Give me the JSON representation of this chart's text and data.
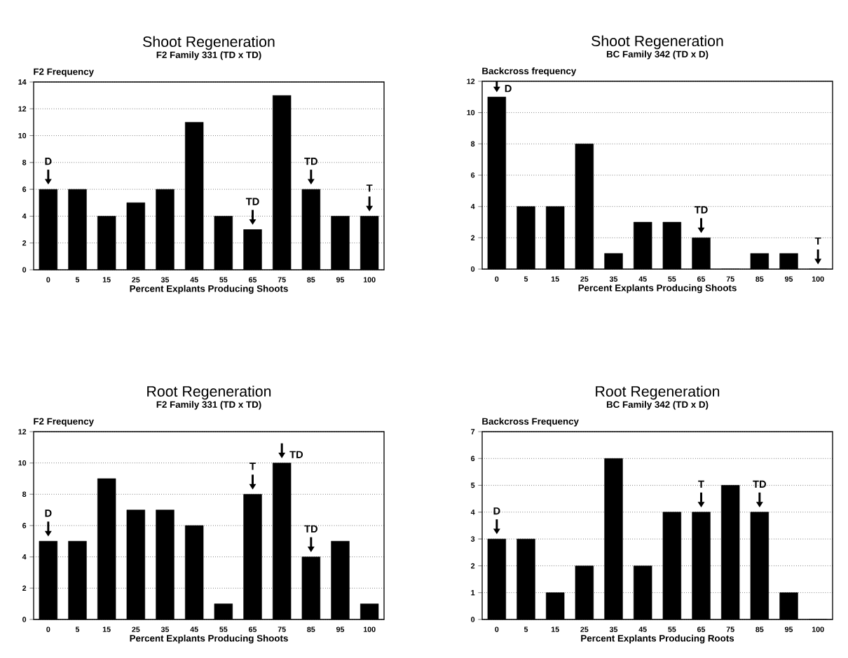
{
  "chart_data": [
    {
      "type": "bar",
      "title": "Shoot Regeneration",
      "subtitle": "F2 Family 331 (TD x TD)",
      "ylabel": "F2 Frequency",
      "xlabel": "Percent Explants Producing Shoots",
      "categories": [
        "0",
        "5",
        "15",
        "25",
        "35",
        "45",
        "55",
        "65",
        "75",
        "85",
        "95",
        "100"
      ],
      "values": [
        6,
        6,
        4,
        5,
        6,
        11,
        4,
        3,
        13,
        6,
        4,
        4
      ],
      "color": "#000000",
      "ylim": [
        0,
        14
      ],
      "yticks": [
        0,
        2,
        4,
        6,
        8,
        10,
        12,
        14
      ],
      "grid": "y",
      "annotations": [
        {
          "text": "D",
          "x": "0",
          "y": 6
        },
        {
          "text": "TD",
          "x": "65",
          "y": 3
        },
        {
          "text": "TD",
          "x": "85",
          "y": 6
        },
        {
          "text": "T",
          "x": "100",
          "y": 4
        }
      ]
    },
    {
      "type": "bar",
      "title": "Shoot Regeneration",
      "subtitle": "BC Family 342 (TD x D)",
      "ylabel": "Backcross frequency",
      "xlabel": "Percent Explants Producing Shoots",
      "categories": [
        "0",
        "5",
        "15",
        "25",
        "35",
        "45",
        "55",
        "65",
        "75",
        "85",
        "95",
        "100"
      ],
      "values": [
        11,
        4,
        4,
        8,
        1,
        3,
        3,
        2,
        0,
        1,
        1,
        0
      ],
      "color": "#000000",
      "ylim": [
        0,
        12
      ],
      "yticks": [
        0,
        2,
        4,
        6,
        8,
        10,
        12
      ],
      "grid": "y",
      "annotations": [
        {
          "text": "D",
          "x": "0",
          "y": 11
        },
        {
          "text": "TD",
          "x": "65",
          "y": 2
        },
        {
          "text": "T",
          "x": "100",
          "y": 0
        }
      ]
    },
    {
      "type": "bar",
      "title": "Root Regeneration",
      "subtitle": "F2 Family 331 (TD x TD)",
      "ylabel": "F2 Frequency",
      "xlabel": "Percent Explants Producing Shoots",
      "categories": [
        "0",
        "5",
        "15",
        "25",
        "35",
        "45",
        "55",
        "65",
        "75",
        "85",
        "95",
        "100"
      ],
      "values": [
        5,
        5,
        9,
        7,
        7,
        6,
        1,
        8,
        10,
        4,
        5,
        1
      ],
      "color": "#000000",
      "ylim": [
        0,
        12
      ],
      "yticks": [
        0,
        2,
        4,
        6,
        8,
        10,
        12
      ],
      "grid": "y",
      "annotations": [
        {
          "text": "D",
          "x": "0",
          "y": 5
        },
        {
          "text": "T",
          "x": "65",
          "y": 8
        },
        {
          "text": "TD",
          "x": "75",
          "y": 10
        },
        {
          "text": "TD",
          "x": "85",
          "y": 4
        }
      ]
    },
    {
      "type": "bar",
      "title": "Root Regeneration",
      "subtitle": "BC Family 342 (TD x D)",
      "ylabel": "Backcross Frequency",
      "xlabel": "Percent Explants Producing Roots",
      "categories": [
        "0",
        "5",
        "15",
        "25",
        "35",
        "45",
        "55",
        "65",
        "75",
        "85",
        "95",
        "100"
      ],
      "values": [
        3,
        3,
        1,
        2,
        6,
        2,
        4,
        4,
        5,
        4,
        1,
        0
      ],
      "color": "#000000",
      "ylim": [
        0,
        7
      ],
      "yticks": [
        0,
        1,
        2,
        3,
        4,
        5,
        6,
        7
      ],
      "grid": "y",
      "annotations": [
        {
          "text": "D",
          "x": "0",
          "y": 3
        },
        {
          "text": "T",
          "x": "65",
          "y": 4
        },
        {
          "text": "TD",
          "x": "85",
          "y": 4
        }
      ]
    }
  ]
}
